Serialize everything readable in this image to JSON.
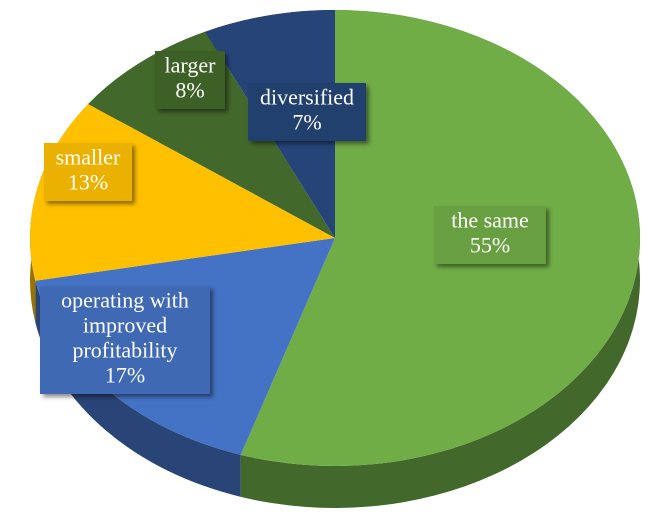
{
  "chart_data": {
    "type": "pie",
    "categories": [
      "the same",
      "operating with improved profitability",
      "smaller",
      "larger",
      "diversified"
    ],
    "values": [
      55,
      17,
      13,
      8,
      7
    ],
    "value_labels": [
      "55%",
      "17%",
      "13%",
      "8%",
      "7%"
    ],
    "colors": [
      "#70ad47",
      "#4472c4",
      "#ffc000",
      "#43682b",
      "#264478"
    ]
  }
}
